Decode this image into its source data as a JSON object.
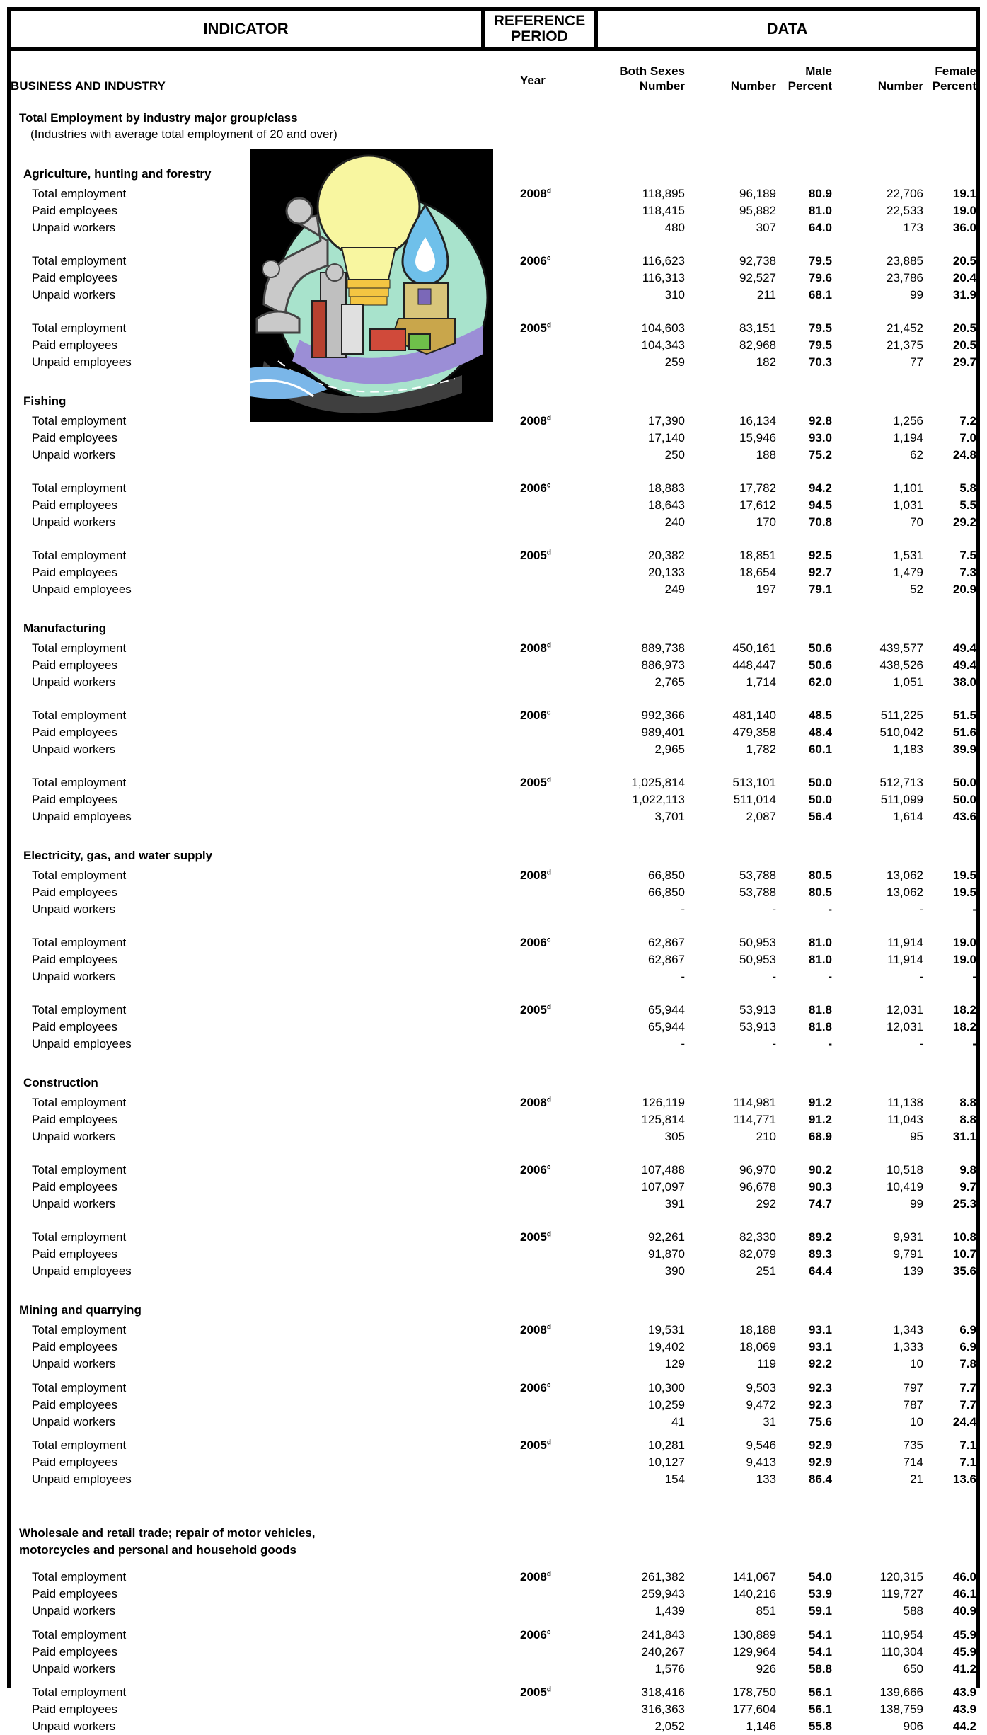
{
  "header": {
    "indicator": "INDICATOR",
    "reference_period": "REFERENCE PERIOD",
    "data": "DATA"
  },
  "columns": {
    "year": "Year",
    "both_top": "Both Sexes",
    "both_bottom": "Number",
    "male_number": "Number",
    "male_top": "Male",
    "male_percent": "Percent",
    "female_number": "Number",
    "female_top": "Female",
    "female_percent": "Percent"
  },
  "category": "BUSINESS AND INDUSTRY",
  "table_title": "Total Employment by industry major group/class",
  "table_subtitle": "(Industries with average total employment of 20 and over)",
  "sections": [
    {
      "title": "Agriculture, hunting and forestry",
      "groups": [
        {
          "year": "2008",
          "mark": "d",
          "rows": [
            [
              "Total employment",
              "118,895",
              "96,189",
              "80.9",
              "22,706",
              "19.1"
            ],
            [
              "Paid employees",
              "118,415",
              "95,882",
              "81.0",
              "22,533",
              "19.0"
            ],
            [
              "Unpaid workers",
              "480",
              "307",
              "64.0",
              "173",
              "36.0"
            ]
          ]
        },
        {
          "year": "2006",
          "mark": "c",
          "rows": [
            [
              "Total employment",
              "116,623",
              "92,738",
              "79.5",
              "23,885",
              "20.5"
            ],
            [
              "Paid employees",
              "116,313",
              "92,527",
              "79.6",
              "23,786",
              "20.4"
            ],
            [
              "Unpaid workers",
              "310",
              "211",
              "68.1",
              "99",
              "31.9"
            ]
          ]
        },
        {
          "year": "2005",
          "mark": "d",
          "rows": [
            [
              "Total employment",
              "104,603",
              "83,151",
              "79.5",
              "21,452",
              "20.5"
            ],
            [
              "Paid employees",
              "104,343",
              "82,968",
              "79.5",
              "21,375",
              "20.5"
            ],
            [
              "Unpaid employees",
              "259",
              "182",
              "70.3",
              "77",
              "29.7"
            ]
          ]
        }
      ]
    },
    {
      "title": "Fishing",
      "groups": [
        {
          "year": "2008",
          "mark": "d",
          "rows": [
            [
              "Total employment",
              "17,390",
              "16,134",
              "92.8",
              "1,256",
              "7.2"
            ],
            [
              "Paid employees",
              "17,140",
              "15,946",
              "93.0",
              "1,194",
              "7.0"
            ],
            [
              "Unpaid workers",
              "250",
              "188",
              "75.2",
              "62",
              "24.8"
            ]
          ]
        },
        {
          "year": "2006",
          "mark": "c",
          "rows": [
            [
              "Total employment",
              "18,883",
              "17,782",
              "94.2",
              "1,101",
              "5.8"
            ],
            [
              "Paid employees",
              "18,643",
              "17,612",
              "94.5",
              "1,031",
              "5.5"
            ],
            [
              "Unpaid workers",
              "240",
              "170",
              "70.8",
              "70",
              "29.2"
            ]
          ]
        },
        {
          "year": "2005",
          "mark": "d",
          "rows": [
            [
              "Total employment",
              "20,382",
              "18,851",
              "92.5",
              "1,531",
              "7.5"
            ],
            [
              "Paid employees",
              "20,133",
              "18,654",
              "92.7",
              "1,479",
              "7.3"
            ],
            [
              "Unpaid employees",
              "249",
              "197",
              "79.1",
              "52",
              "20.9"
            ]
          ]
        }
      ]
    },
    {
      "title": "Manufacturing",
      "groups": [
        {
          "year": "2008",
          "mark": "d",
          "rows": [
            [
              "Total employment",
              "889,738",
              "450,161",
              "50.6",
              "439,577",
              "49.4"
            ],
            [
              "Paid employees",
              "886,973",
              "448,447",
              "50.6",
              "438,526",
              "49.4"
            ],
            [
              "Unpaid workers",
              "2,765",
              "1,714",
              "62.0",
              "1,051",
              "38.0"
            ]
          ]
        },
        {
          "year": "2006",
          "mark": "c",
          "rows": [
            [
              "Total employment",
              "992,366",
              "481,140",
              "48.5",
              "511,225",
              "51.5"
            ],
            [
              "Paid employees",
              "989,401",
              "479,358",
              "48.4",
              "510,042",
              "51.6"
            ],
            [
              "Unpaid workers",
              "2,965",
              "1,782",
              "60.1",
              "1,183",
              "39.9"
            ]
          ]
        },
        {
          "year": "2005",
          "mark": "d",
          "rows": [
            [
              "Total employment",
              "1,025,814",
              "513,101",
              "50.0",
              "512,713",
              "50.0"
            ],
            [
              "Paid employees",
              "1,022,113",
              "511,014",
              "50.0",
              "511,099",
              "50.0"
            ],
            [
              "Unpaid employees",
              "3,701",
              "2,087",
              "56.4",
              "1,614",
              "43.6"
            ]
          ]
        }
      ]
    },
    {
      "title": "Electricity, gas, and water supply",
      "groups": [
        {
          "year": "2008",
          "mark": "d",
          "rows": [
            [
              "Total employment",
              "66,850",
              "53,788",
              "80.5",
              "13,062",
              "19.5"
            ],
            [
              "Paid employees",
              "66,850",
              "53,788",
              "80.5",
              "13,062",
              "19.5"
            ],
            [
              "Unpaid workers",
              "-",
              "-",
              "-",
              "-",
              "-"
            ]
          ]
        },
        {
          "year": "2006",
          "mark": "c",
          "rows": [
            [
              "Total employment",
              "62,867",
              "50,953",
              "81.0",
              "11,914",
              "19.0"
            ],
            [
              "Paid employees",
              "62,867",
              "50,953",
              "81.0",
              "11,914",
              "19.0"
            ],
            [
              "Unpaid workers",
              "-",
              "-",
              "-",
              "-",
              "-"
            ]
          ]
        },
        {
          "year": "2005",
          "mark": "d",
          "rows": [
            [
              "Total employment",
              "65,944",
              "53,913",
              "81.8",
              "12,031",
              "18.2"
            ],
            [
              "Paid employees",
              "65,944",
              "53,913",
              "81.8",
              "12,031",
              "18.2"
            ],
            [
              "Unpaid employees",
              "-",
              "-",
              "-",
              "-",
              "-"
            ]
          ]
        }
      ]
    },
    {
      "title": "Construction",
      "groups": [
        {
          "year": "2008",
          "mark": "d",
          "rows": [
            [
              "Total employment",
              "126,119",
              "114,981",
              "91.2",
              "11,138",
              "8.8"
            ],
            [
              "Paid employees",
              "125,814",
              "114,771",
              "91.2",
              "11,043",
              "8.8"
            ],
            [
              "Unpaid workers",
              "305",
              "210",
              "68.9",
              "95",
              "31.1"
            ]
          ]
        },
        {
          "year": "2006",
          "mark": "c",
          "rows": [
            [
              "Total employment",
              "107,488",
              "96,970",
              "90.2",
              "10,518",
              "9.8"
            ],
            [
              "Paid employees",
              "107,097",
              "96,678",
              "90.3",
              "10,419",
              "9.7"
            ],
            [
              "Unpaid workers",
              "391",
              "292",
              "74.7",
              "99",
              "25.3"
            ]
          ]
        },
        {
          "year": "2005",
          "mark": "d",
          "rows": [
            [
              "Total employment",
              "92,261",
              "82,330",
              "89.2",
              "9,931",
              "10.8"
            ],
            [
              "Paid employees",
              "91,870",
              "82,079",
              "89.3",
              "9,791",
              "10.7"
            ],
            [
              "Unpaid employees",
              "390",
              "251",
              "64.4",
              "139",
              "35.6"
            ]
          ]
        }
      ]
    },
    {
      "title": "Mining and quarrying",
      "groups": [
        {
          "year": "2008",
          "mark": "d",
          "rows": [
            [
              "Total employment",
              "19,531",
              "18,188",
              "93.1",
              "1,343",
              "6.9"
            ],
            [
              "Paid employees",
              "19,402",
              "18,069",
              "93.1",
              "1,333",
              "6.9"
            ],
            [
              "Unpaid workers",
              "129",
              "119",
              "92.2",
              "10",
              "7.8"
            ]
          ]
        },
        {
          "year": "2006",
          "mark": "c",
          "rows": [
            [
              "Total employment",
              "10,300",
              "9,503",
              "92.3",
              "797",
              "7.7"
            ],
            [
              "Paid employees",
              "10,259",
              "9,472",
              "92.3",
              "787",
              "7.7"
            ],
            [
              "Unpaid workers",
              "41",
              "31",
              "75.6",
              "10",
              "24.4"
            ]
          ]
        },
        {
          "year": "2005",
          "mark": "d",
          "rows": [
            [
              "Total employment",
              "10,281",
              "9,546",
              "92.9",
              "735",
              "7.1"
            ],
            [
              "Paid employees",
              "10,127",
              "9,413",
              "92.9",
              "714",
              "7.1"
            ],
            [
              "Unpaid employees",
              "154",
              "133",
              "86.4",
              "21",
              "13.6"
            ]
          ]
        }
      ]
    },
    {
      "title": "Wholesale and retail trade; repair of motor vehicles,",
      "title2": "motorcycles and personal and household goods",
      "groups": [
        {
          "year": "2008",
          "mark": "d",
          "rows": [
            [
              "Total employment",
              "261,382",
              "141,067",
              "54.0",
              "120,315",
              "46.0"
            ],
            [
              "Paid employees",
              "259,943",
              "140,216",
              "53.9",
              "119,727",
              "46.1"
            ],
            [
              "Unpaid workers",
              "1,439",
              "851",
              "59.1",
              "588",
              "40.9"
            ]
          ]
        },
        {
          "year": "2006",
          "mark": "c",
          "rows": [
            [
              "Total employment",
              "241,843",
              "130,889",
              "54.1",
              "110,954",
              "45.9"
            ],
            [
              "Paid employees",
              "240,267",
              "129,964",
              "54.1",
              "110,304",
              "45.9"
            ],
            [
              "Unpaid workers",
              "1,576",
              "926",
              "58.8",
              "650",
              "41.2"
            ]
          ]
        },
        {
          "year": "2005",
          "mark": "d",
          "rows": [
            [
              "Total employment",
              "318,416",
              "178,750",
              "56.1",
              "139,666",
              "43.9"
            ],
            [
              "Paid employees",
              "316,363",
              "177,604",
              "56.1",
              "138,759",
              "43.9"
            ],
            [
              "Unpaid workers",
              "2,052",
              "1,146",
              "55.8",
              "906",
              "44.2"
            ]
          ]
        }
      ]
    }
  ]
}
